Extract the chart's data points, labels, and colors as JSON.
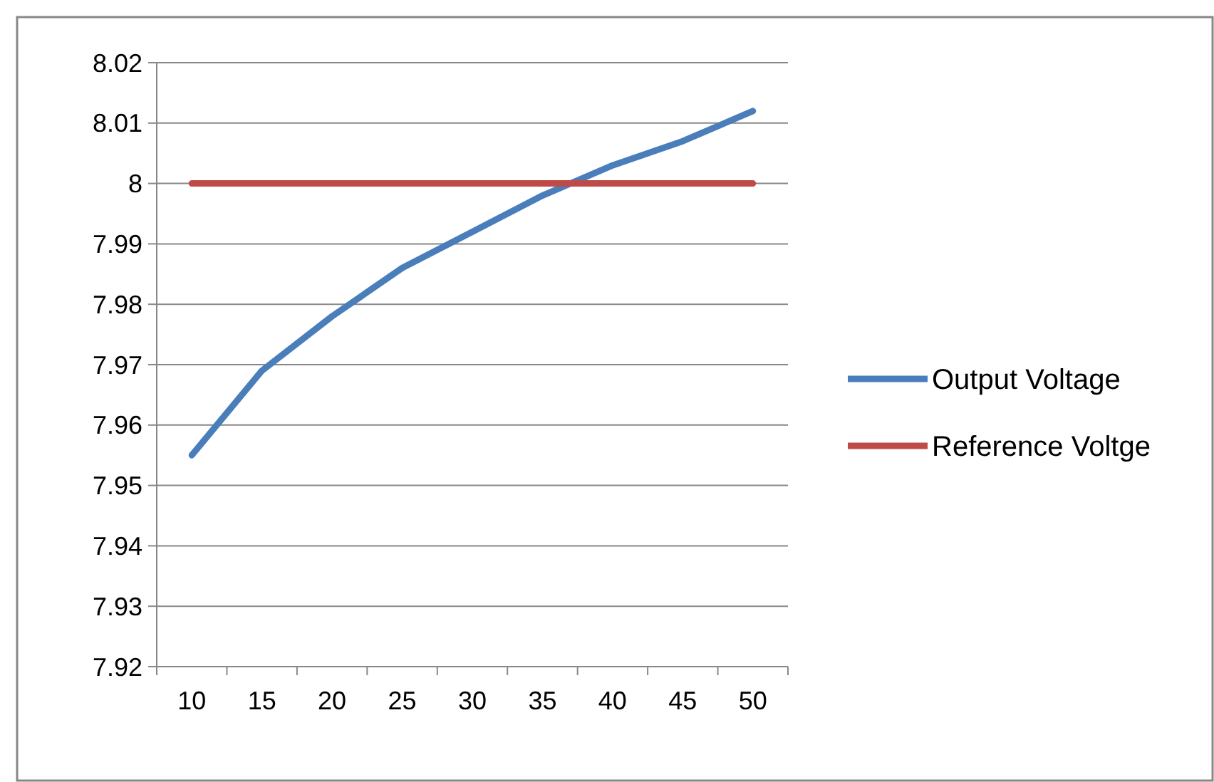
{
  "chart_data": {
    "type": "line",
    "categories": [
      "10",
      "15",
      "20",
      "25",
      "30",
      "35",
      "40",
      "45",
      "50"
    ],
    "series": [
      {
        "name": "Output Voltage",
        "color": "#4a7ebb",
        "values": [
          7.955,
          7.969,
          7.978,
          7.986,
          7.992,
          7.998,
          8.003,
          8.007,
          8.012
        ]
      },
      {
        "name": "Reference Voltge",
        "color": "#be4b48",
        "values": [
          8,
          8,
          8,
          8,
          8,
          8,
          8,
          8,
          8
        ]
      }
    ],
    "ylim": [
      7.92,
      8.02
    ],
    "yticks": [
      7.92,
      7.93,
      7.94,
      7.95,
      7.96,
      7.97,
      7.98,
      7.99,
      {
        "value": 8,
        "label": "8"
      },
      8.01,
      8.02
    ],
    "grid": "y",
    "legend": "right",
    "marker": "none",
    "line_style": "solid"
  }
}
